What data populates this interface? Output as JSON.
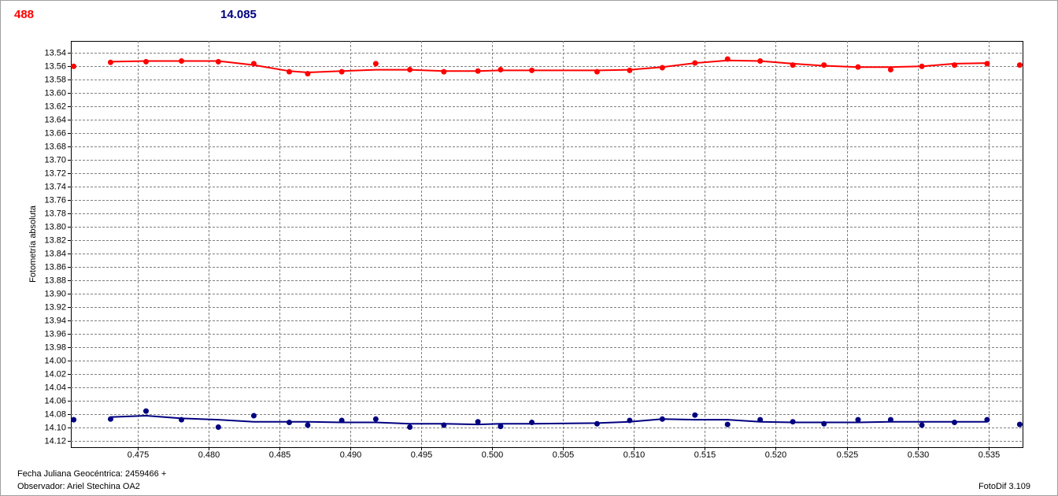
{
  "chart_data": {
    "type": "scatter",
    "header_labels": [
      {
        "text": "488",
        "color": "#ff0000"
      },
      {
        "text": "14.085",
        "color": "#000080"
      }
    ],
    "ylabel": "Fotometría absoluta",
    "xlabel": "Fecha Juliana Geocéntrica: 2459466 +",
    "observer": "Observador: Ariel Stechina OA2",
    "credit": "FotoDif 3.109",
    "xlim": [
      0.4703,
      0.5374
    ],
    "ylim": [
      14.129,
      13.522
    ],
    "xticks": [
      0.475,
      {
        "value": 0.48,
        "label": "0.480"
      },
      0.485,
      {
        "value": 0.49,
        "label": "0.490"
      },
      0.495,
      {
        "value": 0.5,
        "label": "0.500"
      },
      0.505,
      {
        "value": 0.51,
        "label": "0.510"
      },
      0.515,
      {
        "value": 0.52,
        "label": "0.520"
      },
      0.525,
      {
        "value": 0.53,
        "label": "0.530"
      },
      0.535
    ],
    "yticks": [
      13.54,
      13.56,
      13.58,
      {
        "value": 13.6,
        "label": "13.60"
      },
      13.62,
      13.64,
      13.66,
      13.68,
      {
        "value": 13.7,
        "label": "13.70"
      },
      13.72,
      13.74,
      13.76,
      13.78,
      {
        "value": 13.8,
        "label": "13.80"
      },
      13.82,
      13.84,
      13.86,
      13.88,
      {
        "value": 13.9,
        "label": "13.90"
      },
      13.92,
      13.94,
      13.96,
      13.98,
      {
        "value": 14,
        "label": "14.00"
      },
      14.02,
      14.04,
      14.06,
      14.08,
      {
        "value": 14.1,
        "label": "14.10"
      },
      14.12
    ],
    "grid": true,
    "series": [
      {
        "mode": "points",
        "color": "#ff0000",
        "x": [
          0.4705,
          0.4731,
          0.4756,
          0.4781,
          0.4807,
          0.4832,
          0.4857,
          0.487,
          0.4894,
          0.4918,
          0.4942,
          0.4966,
          0.499,
          0.5006,
          0.5028,
          0.5074,
          0.5097,
          0.512,
          0.5143,
          0.5166,
          0.5189,
          0.5212,
          0.5234,
          0.5258,
          0.5281,
          0.5303,
          0.5326,
          0.5349,
          0.5372
        ],
        "values": [
          13.56,
          13.554,
          13.553,
          13.552,
          13.553,
          13.556,
          13.568,
          13.571,
          13.568,
          13.556,
          13.565,
          13.568,
          13.567,
          13.565,
          13.566,
          13.568,
          13.566,
          13.562,
          13.555,
          13.549,
          13.552,
          13.558,
          13.558,
          13.561,
          13.565,
          13.56,
          13.558,
          13.556,
          13.558
        ]
      },
      {
        "mode": "line",
        "color": "#ff0000",
        "x": [
          0.4731,
          0.4756,
          0.4781,
          0.4807,
          0.4832,
          0.4857,
          0.487,
          0.4894,
          0.4918,
          0.4942,
          0.4966,
          0.499,
          0.5006,
          0.5028,
          0.5074,
          0.5097,
          0.512,
          0.5143,
          0.5166,
          0.5189,
          0.5212,
          0.5234,
          0.5258,
          0.5281,
          0.5303,
          0.5326,
          0.5349
        ],
        "values": [
          13.553,
          13.552,
          13.552,
          13.552,
          13.558,
          13.567,
          13.569,
          13.567,
          13.565,
          13.565,
          13.567,
          13.567,
          13.566,
          13.566,
          13.566,
          13.565,
          13.561,
          13.555,
          13.551,
          13.552,
          13.556,
          13.559,
          13.561,
          13.561,
          13.56,
          13.556,
          13.555
        ]
      },
      {
        "mode": "points",
        "color": "#000080",
        "x": [
          0.4705,
          0.4731,
          0.4756,
          0.4781,
          0.4807,
          0.4832,
          0.4857,
          0.487,
          0.4894,
          0.4918,
          0.4942,
          0.4966,
          0.499,
          0.5006,
          0.5028,
          0.5074,
          0.5097,
          0.512,
          0.5143,
          0.5166,
          0.5189,
          0.5212,
          0.5234,
          0.5258,
          0.5281,
          0.5303,
          0.5326,
          0.5349,
          0.5372
        ],
        "values": [
          14.088,
          14.087,
          14.075,
          14.088,
          14.099,
          14.082,
          14.092,
          14.096,
          14.089,
          14.087,
          14.099,
          14.096,
          14.091,
          14.098,
          14.092,
          14.094,
          14.089,
          14.087,
          14.081,
          14.095,
          14.088,
          14.091,
          14.094,
          14.088,
          14.088,
          14.096,
          14.092,
          14.088,
          14.095
        ]
      },
      {
        "mode": "line",
        "color": "#000080",
        "x": [
          0.4731,
          0.4756,
          0.4781,
          0.4807,
          0.4832,
          0.4857,
          0.487,
          0.4894,
          0.4918,
          0.4942,
          0.4966,
          0.499,
          0.5006,
          0.5028,
          0.5074,
          0.5097,
          0.512,
          0.5143,
          0.5166,
          0.5189,
          0.5212,
          0.5234,
          0.5258,
          0.5281,
          0.5303,
          0.5326,
          0.5349
        ],
        "values": [
          14.084,
          14.082,
          14.086,
          14.088,
          14.091,
          14.091,
          14.091,
          14.092,
          14.092,
          14.094,
          14.094,
          14.095,
          14.094,
          14.094,
          14.093,
          14.091,
          14.087,
          14.088,
          14.088,
          14.091,
          14.092,
          14.092,
          14.092,
          14.091,
          14.091,
          14.091,
          14.091
        ]
      }
    ]
  }
}
